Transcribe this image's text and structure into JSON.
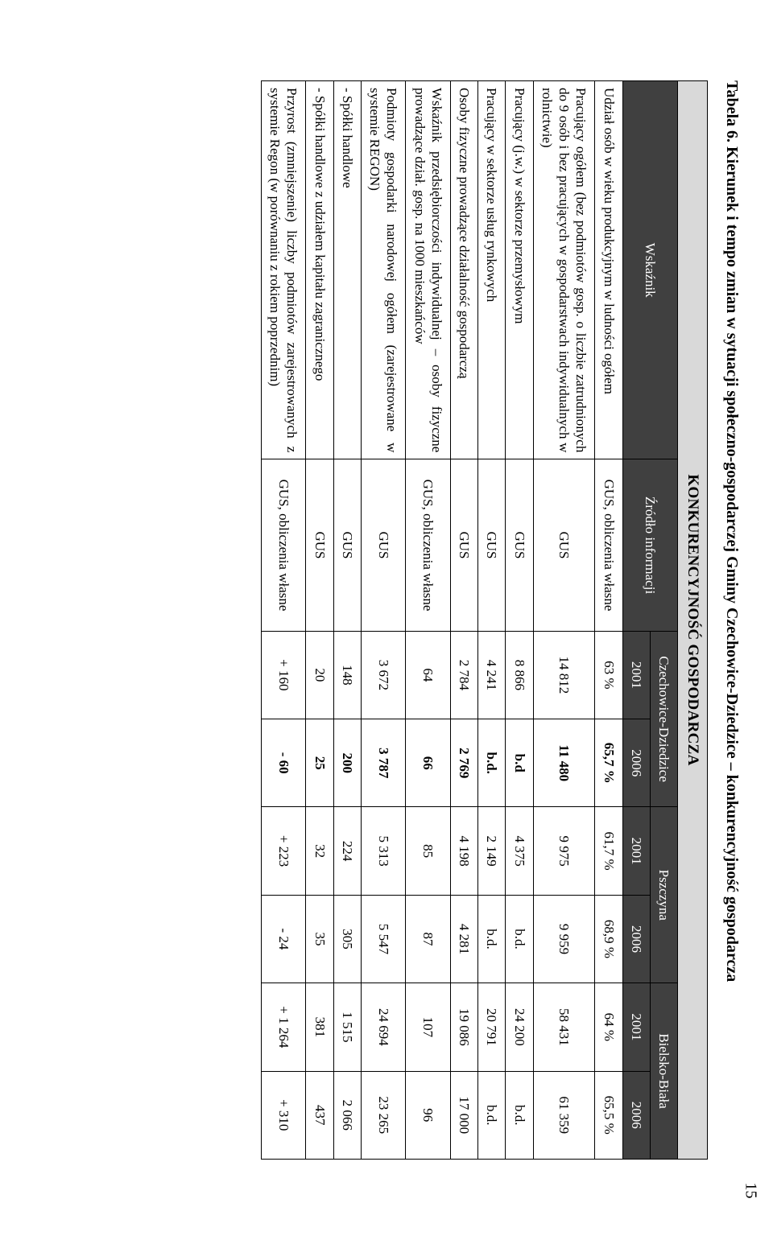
{
  "caption": "Tabela 6. Kierunek i tempo zmian w sytuacji społeczno-gospodarczej Gminy Czechowice-Dziedzice – konkurencyjność gospodarcza",
  "header": {
    "title": "KONKURENCYJNOŚĆ GOSPODARCZA",
    "indicator": "Wskaźnik",
    "source": "Źródło informacji",
    "cities": [
      "Czechowice-Dziedzice",
      "Pszczyna",
      "Bielsko-Biała"
    ],
    "years": [
      "2001",
      "2006",
      "2001",
      "2006",
      "2001",
      "2006"
    ]
  },
  "rows": [
    {
      "indicator": "Udział osób w wieku produkcyjnym w ludności ogółem",
      "source": "GUS, obliczenia własne",
      "v": [
        "63 %",
        "65,7 %",
        "61,7 %",
        "68,9 %",
        "64 %",
        "65,5 %"
      ]
    },
    {
      "indicator": "Pracujący ogółem (bez podmiotów gosp. o liczbie zatrudnionych do 9 osób i bez pracujących w gospodarstwach indywidualnych w rolnictwie)",
      "source": "GUS",
      "v": [
        "14 812",
        "11 480",
        "9 975",
        "9 959",
        "58 431",
        "61 359"
      ]
    },
    {
      "indicator": "Pracujący (j.w.) w sektorze przemysłowym",
      "source": "GUS",
      "v": [
        "8 866",
        "b.d",
        "4 375",
        "b.d.",
        "24 200",
        "b.d."
      ]
    },
    {
      "indicator": "Pracujący w sektorze usług rynkowych",
      "source": "GUS",
      "v": [
        "4 241",
        "b.d.",
        "2 149",
        "b.d.",
        "20 791",
        "b.d."
      ]
    },
    {
      "indicator": "Osoby fizyczne prowadzące działalność gospodarczą",
      "source": "GUS",
      "v": [
        "2 784",
        "2 769",
        "4 198",
        "4 281",
        "19 086",
        "17 000"
      ]
    },
    {
      "indicator": "Wskaźnik przedsiębiorczości indywidualnej – osoby fizyczne prowadzące dział. gosp. na 1000 mieszkańców",
      "source": "GUS, obliczenia własne",
      "v": [
        "64",
        "66",
        "85",
        "87",
        "107",
        "96"
      ]
    },
    {
      "indicator": "Podmioty gospodarki narodowej ogółem (zarejestrowane w systemie REGON)",
      "source": "GUS",
      "v": [
        "3 672",
        "3 787",
        "5 313",
        "5 547",
        "24 694",
        "23 265"
      ]
    },
    {
      "indicator": "- Spółki handlowe",
      "source": "GUS",
      "v": [
        "148",
        "200",
        "224",
        "305",
        "1 515",
        "2 066"
      ]
    },
    {
      "indicator": "- Spółki handlowe z udziałem kapitału zagranicznego",
      "source": "GUS",
      "v": [
        "20",
        "25",
        "32",
        "35",
        "381",
        "437"
      ]
    },
    {
      "indicator": "Przyrost (zmniejszenie) liczby podmiotów zarejestrowanych z systemie Regon (w porównaniu z rokiem poprzednim)",
      "source": "GUS, obliczenia własne",
      "v": [
        "+ 160",
        "- 60",
        "+ 223",
        "- 24",
        "+ 1 264",
        "+ 310"
      ]
    }
  ],
  "boldColIndex": 1,
  "pageNumber": "15"
}
